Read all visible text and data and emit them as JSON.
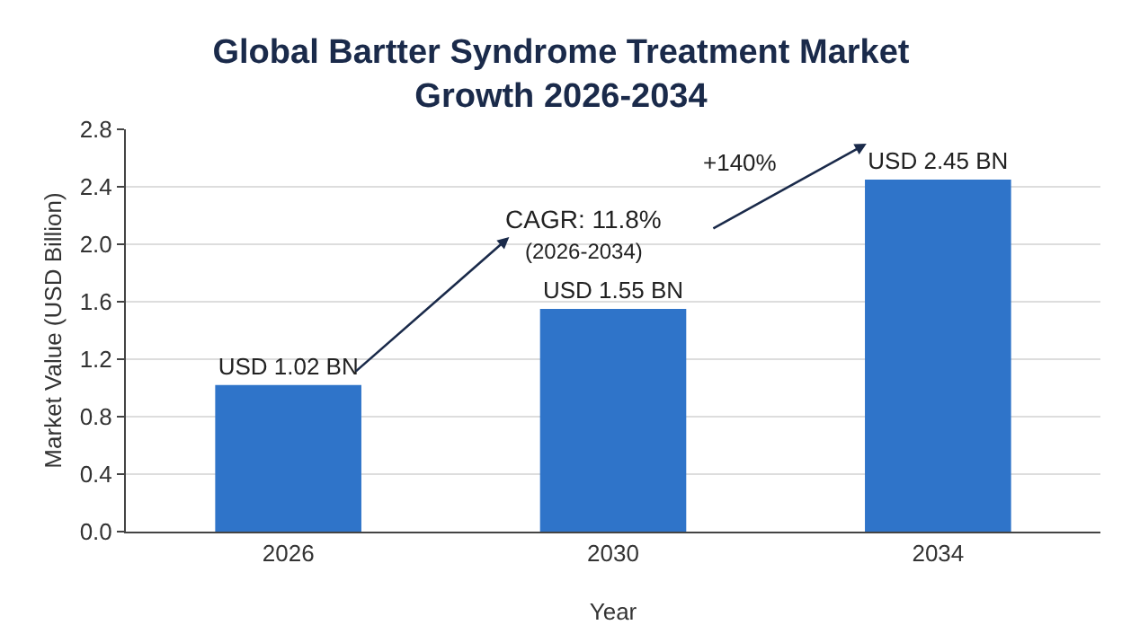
{
  "chart_data": {
    "type": "bar",
    "title": "Global Bartter Syndrome Treatment Market\nGrowth 2026-2034",
    "xlabel": "Year",
    "ylabel": "Market Value (USD Billion)",
    "categories": [
      "2026",
      "2030",
      "2034"
    ],
    "values": [
      1.02,
      1.55,
      2.45
    ],
    "color": "#2f74c9",
    "value_labels": [
      "USD 1.02 BN",
      "USD 1.55 BN",
      "USD 2.45 BN"
    ],
    "ylim": [
      0,
      2.8
    ],
    "yticks": [
      {
        "value": 0,
        "label": "0.0"
      },
      0.4,
      0.8,
      1.2,
      1.6,
      {
        "value": 2,
        "label": "2.0"
      },
      2.4,
      2.8
    ],
    "grid": "y",
    "annotations": [
      "CAGR: 11.8%",
      "(2026-2034)",
      "+140%"
    ]
  }
}
